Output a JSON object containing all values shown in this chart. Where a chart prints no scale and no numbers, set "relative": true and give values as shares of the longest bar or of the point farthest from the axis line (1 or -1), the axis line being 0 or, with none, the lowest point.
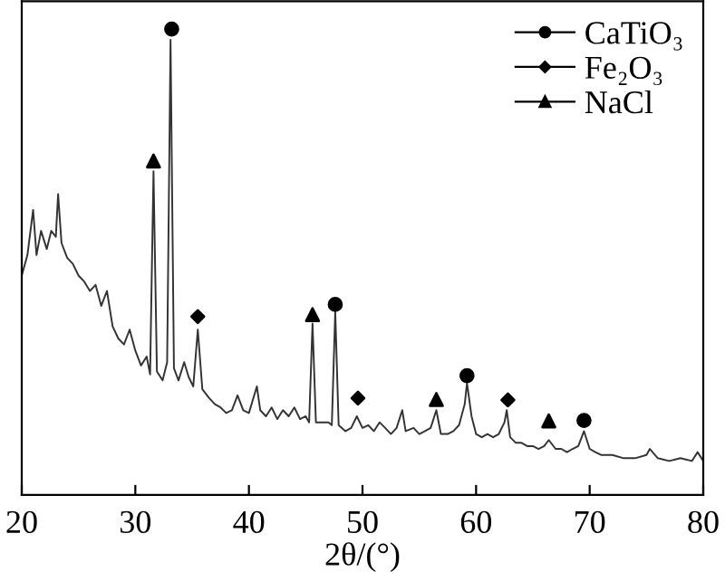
{
  "chart_data": {
    "type": "line",
    "relative": true,
    "xlabel": "2θ/(°)",
    "xlim": [
      20,
      80
    ],
    "xticks": [
      20,
      30,
      40,
      50,
      60,
      70,
      80
    ],
    "tick_labels": "x",
    "grid": false,
    "legend": "top right",
    "series": [
      {
        "color": "#333333",
        "marker": "none",
        "x": [
          20.0,
          20.5,
          21.0,
          21.3,
          21.7,
          22.2,
          22.6,
          23.0,
          23.2,
          23.5,
          24.0,
          24.5,
          25.0,
          25.5,
          26.0,
          26.5,
          27.0,
          27.5,
          28.0,
          28.5,
          29.0,
          29.5,
          30.0,
          30.5,
          31.0,
          31.3,
          31.6,
          31.9,
          32.4,
          32.8,
          33.1,
          33.4,
          33.8,
          34.3,
          34.7,
          35.1,
          35.5,
          35.9,
          36.5,
          37.0,
          37.5,
          38.0,
          38.5,
          39.0,
          39.5,
          40.0,
          40.7,
          41.0,
          41.5,
          42.0,
          42.5,
          43.0,
          43.5,
          44.0,
          44.5,
          45.0,
          45.3,
          45.6,
          45.9,
          46.5,
          47.0,
          47.3,
          47.6,
          47.9,
          48.5,
          49.0,
          49.5,
          50.0,
          50.5,
          51.0,
          51.5,
          52.0,
          52.5,
          53.0,
          53.5,
          53.8,
          54.5,
          55.0,
          55.5,
          56.0,
          56.5,
          56.9,
          57.5,
          58.0,
          58.5,
          59.0,
          59.2,
          59.6,
          60.0,
          60.5,
          61.0,
          61.5,
          62.0,
          62.5,
          62.7,
          63.0,
          63.5,
          64.0,
          64.5,
          65.0,
          65.5,
          66.0,
          66.4,
          67.0,
          67.5,
          68.0,
          68.5,
          69.0,
          69.5,
          70.0,
          70.5,
          71.0,
          72.0,
          73.0,
          74.0,
          75.0,
          75.3,
          76.0,
          77.0,
          78.0,
          79.0,
          79.5,
          80.0
        ],
        "values": [
          0.471,
          0.515,
          0.612,
          0.515,
          0.567,
          0.528,
          0.567,
          0.554,
          0.646,
          0.541,
          0.509,
          0.496,
          0.471,
          0.458,
          0.438,
          0.451,
          0.406,
          0.438,
          0.362,
          0.336,
          0.323,
          0.355,
          0.31,
          0.278,
          0.297,
          0.259,
          0.695,
          0.265,
          0.246,
          0.285,
          0.977,
          0.272,
          0.246,
          0.285,
          0.253,
          0.233,
          0.355,
          0.227,
          0.208,
          0.195,
          0.188,
          0.176,
          0.182,
          0.214,
          0.182,
          0.176,
          0.233,
          0.182,
          0.169,
          0.188,
          0.163,
          0.182,
          0.169,
          0.188,
          0.163,
          0.169,
          0.156,
          0.368,
          0.156,
          0.156,
          0.156,
          0.15,
          0.394,
          0.15,
          0.137,
          0.144,
          0.169,
          0.144,
          0.15,
          0.137,
          0.156,
          0.144,
          0.131,
          0.144,
          0.182,
          0.137,
          0.144,
          0.131,
          0.137,
          0.144,
          0.182,
          0.131,
          0.131,
          0.137,
          0.15,
          0.195,
          0.24,
          0.169,
          0.131,
          0.124,
          0.131,
          0.124,
          0.131,
          0.156,
          0.182,
          0.124,
          0.112,
          0.112,
          0.105,
          0.105,
          0.099,
          0.105,
          0.118,
          0.099,
          0.099,
          0.092,
          0.099,
          0.105,
          0.137,
          0.099,
          0.092,
          0.086,
          0.086,
          0.079,
          0.079,
          0.086,
          0.099,
          0.079,
          0.073,
          0.079,
          0.073,
          0.092,
          0.073
        ]
      },
      {
        "type": "scatter",
        "name": "CaTiO₃",
        "color": "#000000",
        "marker": "circle",
        "x": [
          33.2,
          47.6,
          59.2,
          69.5
        ],
        "values": [
          1.0,
          0.409,
          0.256,
          0.16
        ]
      },
      {
        "type": "scatter",
        "name": "Fe₂O₃",
        "color": "#000000",
        "marker": "diamond",
        "x": [
          35.5,
          49.6,
          62.8
        ],
        "values": [
          0.383,
          0.208,
          0.204
        ]
      },
      {
        "type": "scatter",
        "name": "NaCl",
        "color": "#000000",
        "marker": "triangle",
        "x": [
          31.6,
          45.6,
          56.5,
          66.4
        ],
        "values": [
          0.717,
          0.387,
          0.205,
          0.159
        ]
      }
    ]
  }
}
